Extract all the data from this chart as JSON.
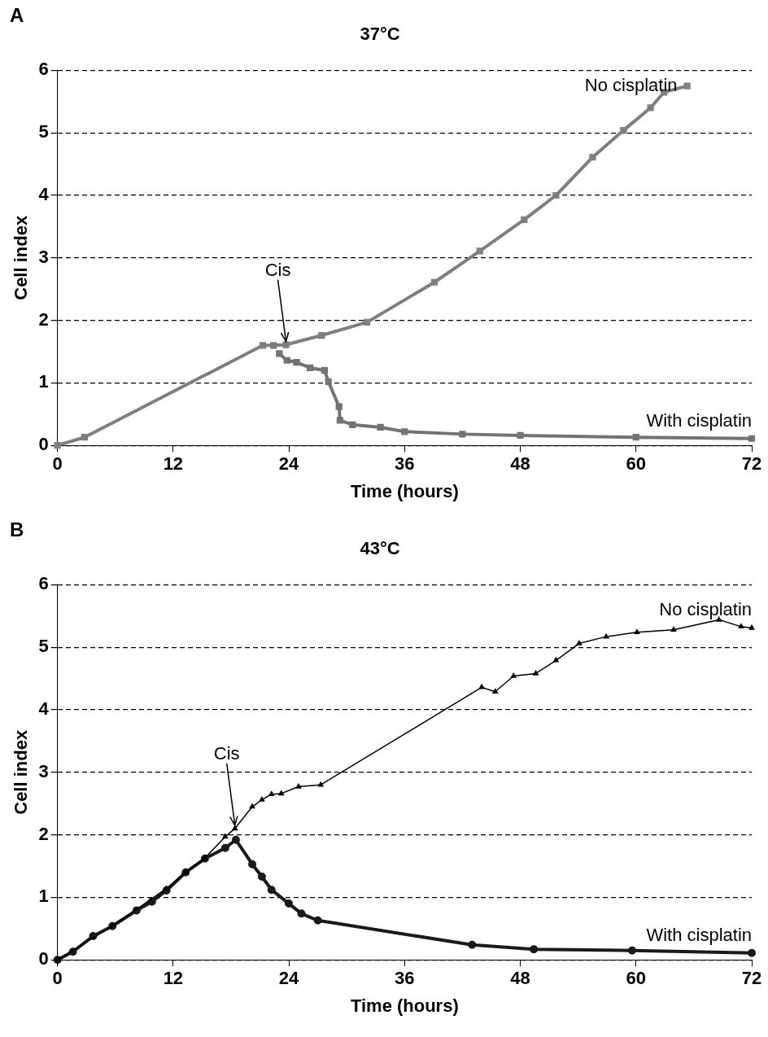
{
  "chart_data": [
    {
      "type": "line",
      "title": "37°C",
      "xlabel": "Time (hours)",
      "ylabel": "Cell index",
      "xlim": [
        0,
        72
      ],
      "xticks": [
        0,
        12,
        24,
        36,
        48,
        60,
        72
      ],
      "ylim": [
        0,
        6
      ],
      "yticks": [
        0,
        1,
        2,
        3,
        4,
        5,
        6
      ],
      "grid": "y",
      "legend": false,
      "marker": "square",
      "annotations": [
        "A",
        {
          "text": "Cis",
          "x": 23.7,
          "y": 1.61
        }
      ],
      "series": [
        {
          "name": "No cisplatin",
          "color": "#7f7f7f",
          "x": [
            0,
            2.8,
            21.3,
            22.4,
            23.7,
            27.4,
            32.1,
            39.1,
            43.8,
            48.4,
            51.7,
            55.5,
            58.7,
            61.5,
            62.9,
            65.3
          ],
          "values": [
            0,
            0.13,
            1.6,
            1.6,
            1.61,
            1.76,
            1.97,
            2.61,
            3.11,
            3.61,
            4.0,
            4.61,
            5.04,
            5.4,
            5.65,
            5.75
          ]
        },
        {
          "name": "With cisplatin",
          "color": "#737373",
          "x": [
            23,
            23.8,
            24.8,
            26.2,
            27.7,
            28.1,
            29.2,
            29.3,
            30.6,
            33.5,
            36,
            42,
            48,
            60,
            72
          ],
          "values": [
            1.47,
            1.36,
            1.33,
            1.24,
            1.2,
            1.02,
            0.62,
            0.4,
            0.33,
            0.29,
            0.22,
            0.18,
            0.16,
            0.13,
            0.11
          ]
        }
      ]
    },
    {
      "type": "line",
      "title": "43°C",
      "xlabel": "Time (hours)",
      "ylabel": "Cell index",
      "xlim": [
        0,
        72
      ],
      "xticks": [
        0,
        12,
        24,
        36,
        48,
        60,
        72
      ],
      "ylim": [
        0,
        6
      ],
      "yticks": [
        0,
        1,
        2,
        3,
        4,
        5,
        6
      ],
      "grid": "y",
      "legend": false,
      "annotations": [
        "B",
        {
          "text": "Cis",
          "x": 18.4,
          "y": 2.1
        }
      ],
      "series": [
        {
          "name": "No cisplatin",
          "color": "#000000",
          "marker": "triangle",
          "x": [
            0,
            5.7,
            11.3,
            13.3,
            15.3,
            17.4,
            18.4,
            20.2,
            21.2,
            22.2,
            23.2,
            25,
            27.3,
            44,
            45.4,
            47.3,
            49.6,
            51.7,
            54.1,
            56.9,
            60.1,
            63.9,
            68.6,
            70.9,
            72
          ],
          "values": [
            0,
            0.54,
            1.14,
            1.4,
            1.63,
            1.97,
            2.1,
            2.45,
            2.56,
            2.65,
            2.66,
            2.77,
            2.8,
            4.36,
            4.29,
            4.54,
            4.58,
            4.79,
            5.06,
            5.17,
            5.24,
            5.28,
            5.44,
            5.33,
            5.31
          ]
        },
        {
          "name": "With cisplatin",
          "color": "#1a1a1a",
          "marker": "circle",
          "x": [
            0,
            1.6,
            3.7,
            5.7,
            8.2,
            9.8,
            11.3,
            13.3,
            15.3,
            17.4,
            18.5,
            20.2,
            21.2,
            22.2,
            24,
            25.3,
            27,
            43,
            49.4,
            59.6,
            72
          ],
          "values": [
            0,
            0.13,
            0.38,
            0.54,
            0.79,
            0.93,
            1.11,
            1.4,
            1.62,
            1.79,
            1.92,
            1.53,
            1.33,
            1.12,
            0.9,
            0.74,
            0.63,
            0.24,
            0.17,
            0.15,
            0.11
          ]
        }
      ]
    }
  ]
}
